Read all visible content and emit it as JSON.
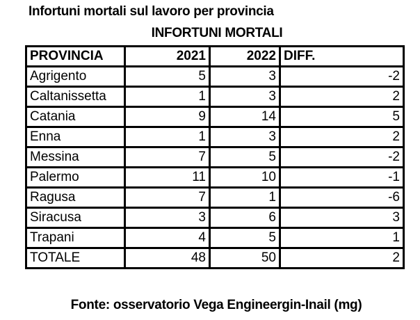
{
  "title": "Infortuni mortali sul lavoro per provincia",
  "subtitle": "INFORTUNI MORTALI",
  "table": {
    "headers": [
      "PROVINCIA",
      "2021",
      "2022",
      "DIFF."
    ],
    "rows": [
      [
        "Agrigento",
        "5",
        "3",
        "-2"
      ],
      [
        "Caltanissetta",
        "1",
        "3",
        "2"
      ],
      [
        "Catania",
        "9",
        "14",
        "5"
      ],
      [
        "Enna",
        "1",
        "3",
        "2"
      ],
      [
        "Messina",
        "7",
        "5",
        "-2"
      ],
      [
        "Palermo",
        "11",
        "10",
        "-1"
      ],
      [
        "Ragusa",
        "7",
        "1",
        "-6"
      ],
      [
        "Siracusa",
        "3",
        "6",
        "3"
      ],
      [
        "Trapani",
        "4",
        "5",
        "1"
      ],
      [
        "TOTALE",
        "48",
        "50",
        "2"
      ]
    ]
  },
  "source": "Fonte: osservatorio Vega Engineergin-Inail (mg)"
}
